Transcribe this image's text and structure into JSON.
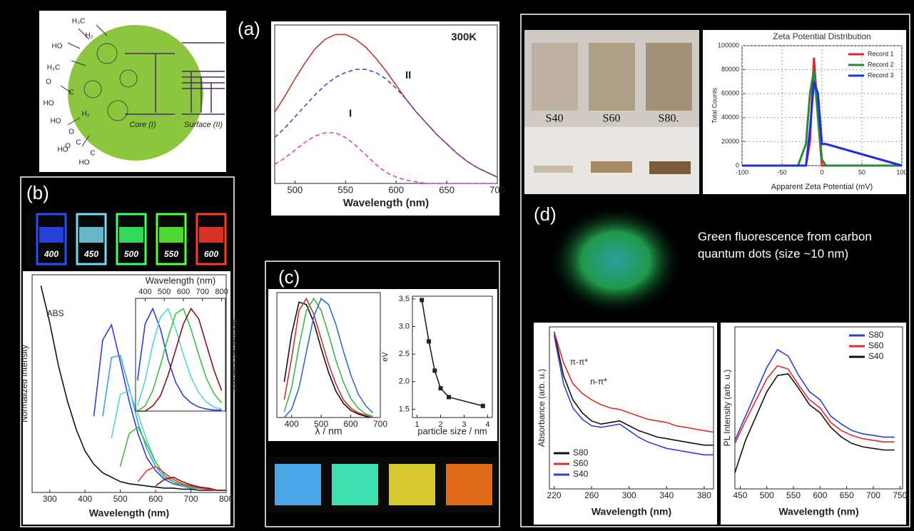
{
  "panel_labels": [
    "(a)",
    "(b)",
    "(c)",
    "(d)"
  ],
  "schematic": {
    "labels": [
      "H₃C",
      "H₂",
      "HO",
      "H₃C",
      "O",
      "C",
      "HO",
      "O",
      "C",
      "HO",
      "H₂",
      "HO",
      "O",
      "C",
      "HO",
      "Core (I)",
      "Surface (II)"
    ]
  },
  "vial_labels": [
    "400",
    "450",
    "500",
    "550",
    "600"
  ],
  "sample_labels": [
    "S40",
    "S60",
    "S80."
  ],
  "caption": "Green fluorescence from carbon quantum dots (size ~10 nm)",
  "chart_data": [
    {
      "type": "line",
      "xlabel": "Wavelength (nm)",
      "annotations": [
        "300K",
        "II",
        "I"
      ],
      "x": [
        480,
        490,
        500,
        510,
        520,
        530,
        540,
        550,
        560,
        570,
        580,
        590,
        600,
        610,
        620,
        630,
        640,
        650,
        660,
        670,
        680,
        690,
        700
      ],
      "xlim": [
        480,
        700
      ],
      "ylim": [
        0,
        1
      ],
      "xticks": [
        500,
        550,
        600,
        650,
        700
      ],
      "series": [
        {
          "color": "#c0392b",
          "values": [
            0.45,
            0.55,
            0.66,
            0.76,
            0.85,
            0.91,
            0.94,
            0.94,
            0.91,
            0.86,
            0.79,
            0.71,
            0.62,
            0.53,
            0.45,
            0.38,
            0.31,
            0.25,
            0.19,
            0.14,
            0.1,
            0.07,
            0.04
          ]
        },
        {
          "color": "#3c50c8",
          "dash": true,
          "values": [
            0.29,
            0.35,
            0.42,
            0.49,
            0.56,
            0.62,
            0.67,
            0.7,
            0.72,
            0.72,
            0.7,
            0.66,
            0.6,
            0.53,
            0.45,
            0.38,
            0.31,
            0.25,
            0.19,
            0.14,
            0.1,
            0.07,
            0.04
          ]
        },
        {
          "color": "#e040c8",
          "dash": true,
          "values": [
            0.12,
            0.16,
            0.21,
            0.26,
            0.3,
            0.32,
            0.32,
            0.29,
            0.24,
            0.18,
            0.12,
            0.07,
            0.04,
            0.02,
            0.01,
            0,
            0,
            0,
            0,
            0,
            0,
            0,
            0
          ]
        }
      ]
    },
    {
      "type": "line",
      "xlabel": "Wavelength (nm)",
      "ylabel": "Normalized Intensity",
      "annotations": [
        "ABS"
      ],
      "x": [
        275,
        300,
        325,
        350,
        375,
        400,
        425,
        450,
        475,
        500,
        525,
        550,
        575,
        600,
        625,
        650,
        675,
        700,
        725,
        750,
        775,
        800
      ],
      "xlim": [
        250,
        800
      ],
      "ylim": [
        0,
        1
      ],
      "xticks": [
        300,
        400,
        500,
        600,
        700,
        800
      ],
      "series": [
        {
          "color": "#111111",
          "values": [
            0.95,
            0.78,
            0.58,
            0.42,
            0.29,
            0.19,
            0.13,
            0.09,
            0.07,
            0.05,
            0.04,
            0.035,
            0.03,
            0.025,
            0.02,
            0.02,
            0.015,
            0.015,
            0.01,
            0.01,
            0.01,
            0.01
          ]
        },
        {
          "color": "#2a3fd8",
          "values": [
            null,
            null,
            null,
            null,
            null,
            null,
            0.35,
            0.7,
            0.77,
            0.6,
            0.42,
            0.27,
            0.16,
            0.1,
            0.06,
            0.04,
            0.03,
            0.02,
            0.02,
            0.015,
            0.01,
            0.01
          ]
        },
        {
          "color": "#3aa0e8",
          "values": [
            null,
            null,
            null,
            null,
            null,
            null,
            null,
            0.35,
            0.62,
            0.63,
            0.48,
            0.32,
            0.2,
            0.12,
            0.07,
            0.05,
            0.03,
            0.02,
            0.02,
            0.015,
            0.01,
            0.01
          ]
        },
        {
          "color": "#56d8d0",
          "values": [
            null,
            null,
            null,
            null,
            null,
            null,
            null,
            null,
            0.25,
            0.45,
            0.47,
            0.36,
            0.24,
            0.14,
            0.08,
            0.05,
            0.035,
            0.025,
            0.02,
            0.015,
            0.01,
            0.01
          ]
        },
        {
          "color": "#3cbf3c",
          "values": [
            null,
            null,
            null,
            null,
            null,
            null,
            null,
            null,
            null,
            0.12,
            0.27,
            0.3,
            0.22,
            0.14,
            0.08,
            0.05,
            0.035,
            0.025,
            0.02,
            0.015,
            0.01,
            0.01
          ]
        },
        {
          "color": "#e03a2a",
          "values": [
            null,
            null,
            null,
            null,
            null,
            null,
            null,
            null,
            null,
            null,
            null,
            0.05,
            0.1,
            0.12,
            0.09,
            0.06,
            0.04,
            0.03,
            0.02,
            0.015,
            0.01,
            0.01
          ]
        },
        {
          "color": "#8b1010",
          "values": [
            null,
            null,
            null,
            null,
            null,
            null,
            null,
            null,
            null,
            null,
            null,
            null,
            null,
            0.03,
            0.06,
            0.07,
            0.05,
            0.035,
            0.025,
            0.02,
            0.01,
            0.01
          ]
        }
      ]
    },
    {
      "type": "line",
      "xlabel": "Wavelength (nm)",
      "ylabel": "Normalized Intensity",
      "x_axis_position": "top",
      "y_label_position": "right",
      "x": [
        360,
        400,
        440,
        480,
        520,
        560,
        600,
        640,
        680,
        720,
        760,
        800
      ],
      "xlim": [
        350,
        820
      ],
      "ylim": [
        0,
        1.1
      ],
      "xticks": [
        400,
        500,
        600,
        700,
        800
      ],
      "series": [
        {
          "color": "#2a3fd8",
          "values": [
            0.3,
            0.85,
            1,
            0.8,
            0.5,
            0.28,
            0.15,
            0.08,
            0.04,
            0.02,
            0.01,
            0.01
          ]
        },
        {
          "color": "#56d8d0",
          "values": [
            0.05,
            0.3,
            0.65,
            0.92,
            1,
            0.8,
            0.55,
            0.33,
            0.18,
            0.09,
            0.04,
            0.02
          ]
        },
        {
          "color": "#3cbf3c",
          "values": [
            0,
            0.05,
            0.2,
            0.45,
            0.72,
            0.95,
            1,
            0.8,
            0.55,
            0.32,
            0.17,
            0.08
          ]
        },
        {
          "color": "#8b1010",
          "values": [
            0,
            0,
            0.05,
            0.15,
            0.35,
            0.6,
            0.85,
            1,
            0.9,
            0.65,
            0.4,
            0.2
          ]
        }
      ]
    },
    {
      "type": "line",
      "xlabel": "λ / nm",
      "x": [
        375,
        400,
        425,
        450,
        475,
        500,
        525,
        550,
        575,
        600,
        625,
        650,
        675
      ],
      "xlim": [
        350,
        700
      ],
      "ylim": [
        0,
        1.05
      ],
      "xticks": [
        400,
        500,
        600,
        700
      ],
      "series": [
        {
          "color": "#111111",
          "values": [
            0.3,
            0.7,
            0.97,
            0.95,
            0.8,
            0.58,
            0.38,
            0.22,
            0.12,
            0.06,
            0.03,
            0.01,
            0
          ]
        },
        {
          "color": "#d03030",
          "values": [
            0.15,
            0.5,
            0.9,
            1.0,
            0.87,
            0.66,
            0.45,
            0.28,
            0.15,
            0.08,
            0.04,
            0.02,
            0
          ]
        },
        {
          "color": "#3cb84a",
          "values": [
            0.05,
            0.25,
            0.6,
            0.9,
            1,
            0.9,
            0.7,
            0.48,
            0.3,
            0.16,
            0.08,
            0.03,
            0.01
          ]
        },
        {
          "color": "#2d6fc0",
          "values": [
            0,
            0.07,
            0.25,
            0.55,
            0.85,
            1,
            0.95,
            0.78,
            0.56,
            0.36,
            0.2,
            0.1,
            0.04
          ]
        }
      ]
    },
    {
      "type": "line",
      "xlabel": "particle size / nm",
      "ylabel": "eV",
      "markers": true,
      "x": [
        1.2,
        1.5,
        1.75,
        2.0,
        2.35,
        3.8
      ],
      "xlim": [
        0.8,
        4.2
      ],
      "ylim": [
        1.35,
        3.55
      ],
      "xticks": [
        1,
        2,
        3,
        4
      ],
      "yticks": [
        1.5,
        {
          "value": 2,
          "label": "2.0"
        },
        2.5,
        {
          "value": 3,
          "label": "3.0"
        },
        3.5
      ],
      "series": [
        {
          "color": "#222222",
          "values": [
            3.48,
            2.73,
            2.2,
            1.88,
            1.72,
            1.56
          ]
        }
      ]
    },
    {
      "type": "line",
      "title": "Zeta Potential Distribution",
      "xlabel": "Apparent Zeta Potential (mV)",
      "ylabel": "Total Counts",
      "grid": true,
      "legend": "upper right",
      "x": [
        -100,
        -30,
        -20,
        -15,
        -10,
        -5,
        0,
        5,
        100
      ],
      "xlim": [
        -100,
        100
      ],
      "ylim": [
        0,
        100000
      ],
      "xticks": [
        -100,
        -50,
        0,
        50,
        100
      ],
      "yticks": [
        0,
        20000,
        40000,
        60000,
        80000,
        100000
      ],
      "series": [
        {
          "name": "Record 1",
          "color": "#e8242a",
          "values": [
            0,
            0,
            0,
            20000,
            90000,
            40000,
            0,
            0,
            0
          ]
        },
        {
          "name": "Record 2",
          "color": "#2a8a3c",
          "values": [
            0,
            0,
            18000,
            60000,
            80000,
            40000,
            5000,
            0,
            0
          ]
        },
        {
          "name": "Record 3",
          "color": "#1f2fd8",
          "values": [
            0,
            0,
            0,
            30000,
            70000,
            60000,
            18000,
            18000,
            0
          ]
        }
      ]
    },
    {
      "type": "line",
      "xlabel": "Wavelength (nm)",
      "ylabel": "Absorbance (arb. u.)",
      "legend": "lower left",
      "annotations": [
        "π-π*",
        "n-π*"
      ],
      "x": [
        220,
        230,
        240,
        250,
        260,
        270,
        280,
        290,
        300,
        310,
        320,
        330,
        340,
        350,
        360,
        370,
        380,
        390
      ],
      "xlim": [
        215,
        390
      ],
      "ylim": [
        0,
        1
      ],
      "xticks": [
        220,
        260,
        300,
        340,
        380
      ],
      "series": [
        {
          "name": "S80",
          "color": "#111111",
          "values": [
            0.97,
            0.7,
            0.55,
            0.47,
            0.42,
            0.4,
            0.41,
            0.42,
            0.39,
            0.36,
            0.34,
            0.32,
            0.31,
            0.3,
            0.29,
            0.28,
            0.27,
            0.27
          ]
        },
        {
          "name": "S60",
          "color": "#e02a2a",
          "values": [
            0.97,
            0.78,
            0.65,
            0.59,
            0.55,
            0.52,
            0.5,
            0.49,
            0.47,
            0.45,
            0.43,
            0.42,
            0.41,
            0.39,
            0.38,
            0.37,
            0.36,
            0.35
          ]
        },
        {
          "name": "S40",
          "color": "#2a3fd8",
          "values": [
            0.95,
            0.65,
            0.5,
            0.43,
            0.39,
            0.38,
            0.39,
            0.4,
            0.36,
            0.32,
            0.29,
            0.27,
            0.25,
            0.24,
            0.23,
            0.22,
            0.21,
            0.21
          ]
        }
      ]
    },
    {
      "type": "line",
      "xlabel": "Wavelength (nm)",
      "ylabel": "PL Intensity (arb. u.)",
      "legend": "upper right",
      "x": [
        440,
        460,
        480,
        500,
        520,
        540,
        560,
        580,
        600,
        620,
        640,
        660,
        680,
        700,
        720,
        740
      ],
      "xlim": [
        440,
        755
      ],
      "ylim": [
        0,
        1
      ],
      "xticks": [
        450,
        500,
        550,
        600,
        650,
        700,
        750
      ],
      "series": [
        {
          "name": "S80",
          "color": "#2a3fd8",
          "values": [
            0.3,
            0.45,
            0.6,
            0.75,
            0.86,
            0.82,
            0.7,
            0.6,
            0.55,
            0.45,
            0.4,
            0.36,
            0.34,
            0.33,
            0.32,
            0.32
          ]
        },
        {
          "name": "S60",
          "color": "#e02a2a",
          "values": [
            0.28,
            0.42,
            0.55,
            0.68,
            0.76,
            0.74,
            0.64,
            0.55,
            0.5,
            0.41,
            0.36,
            0.33,
            0.31,
            0.3,
            0.29,
            0.29
          ]
        },
        {
          "name": "S40",
          "color": "#111111",
          "values": [
            0.1,
            0.3,
            0.45,
            0.6,
            0.7,
            0.71,
            0.62,
            0.52,
            0.47,
            0.38,
            0.32,
            0.28,
            0.26,
            0.25,
            0.24,
            0.24
          ]
        }
      ]
    }
  ]
}
